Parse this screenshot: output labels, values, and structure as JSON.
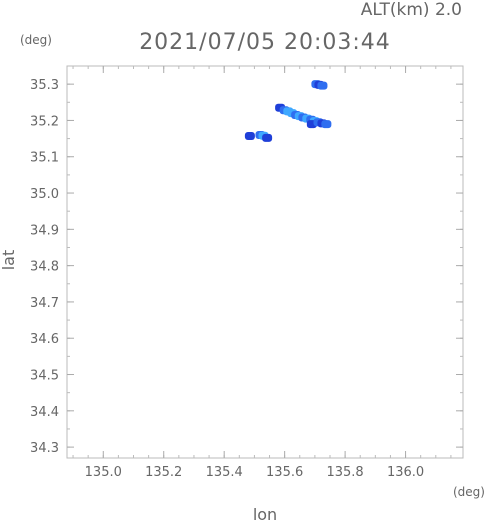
{
  "header": {
    "altitude_label": "ALT(km) 2.0",
    "timestamp": "2021/07/05 20:03:44"
  },
  "chart_data": {
    "type": "scatter",
    "title": "2021/07/05 20:03:44",
    "xlabel": "lon",
    "ylabel": "lat",
    "x_unit": "(deg)",
    "y_unit": "(deg)",
    "xlim": [
      134.88,
      136.19
    ],
    "ylim": [
      34.27,
      35.35
    ],
    "x_ticks": [
      135.0,
      135.2,
      135.4,
      135.6,
      135.8,
      136.0
    ],
    "x_tick_labels": [
      "135.0",
      "135.2",
      "135.4",
      "135.6",
      "135.8",
      "136.0"
    ],
    "y_ticks": [
      35.3,
      35.2,
      35.1,
      35.0,
      34.9,
      34.8,
      34.7,
      34.6,
      34.5,
      34.4,
      34.3
    ],
    "y_tick_labels": [
      "35.3",
      "35.2",
      "35.1",
      "35.0",
      "34.9",
      "34.8",
      "34.7",
      "34.6",
      "34.5",
      "34.4",
      "34.3"
    ],
    "grid": false,
    "colors": {
      "light": "#3fa8ff",
      "mid": "#2f6ef0",
      "dark": "#1f3fd8"
    },
    "points": [
      {
        "lon": 135.705,
        "lat": 35.3,
        "level": "mid"
      },
      {
        "lon": 135.715,
        "lat": 35.298,
        "level": "dark"
      },
      {
        "lon": 135.725,
        "lat": 35.296,
        "level": "mid"
      },
      {
        "lon": 135.585,
        "lat": 35.235,
        "level": "dark"
      },
      {
        "lon": 135.6,
        "lat": 35.228,
        "level": "mid"
      },
      {
        "lon": 135.612,
        "lat": 35.225,
        "level": "light"
      },
      {
        "lon": 135.625,
        "lat": 35.22,
        "level": "light"
      },
      {
        "lon": 135.638,
        "lat": 35.215,
        "level": "mid"
      },
      {
        "lon": 135.65,
        "lat": 35.212,
        "level": "light"
      },
      {
        "lon": 135.662,
        "lat": 35.208,
        "level": "mid"
      },
      {
        "lon": 135.675,
        "lat": 35.205,
        "level": "light"
      },
      {
        "lon": 135.688,
        "lat": 35.202,
        "level": "mid"
      },
      {
        "lon": 135.7,
        "lat": 35.198,
        "level": "light"
      },
      {
        "lon": 135.69,
        "lat": 35.19,
        "level": "dark"
      },
      {
        "lon": 135.712,
        "lat": 35.195,
        "level": "mid"
      },
      {
        "lon": 135.725,
        "lat": 35.192,
        "level": "dark"
      },
      {
        "lon": 135.738,
        "lat": 35.19,
        "level": "mid"
      },
      {
        "lon": 135.52,
        "lat": 35.16,
        "level": "mid"
      },
      {
        "lon": 135.53,
        "lat": 35.158,
        "level": "light"
      },
      {
        "lon": 135.542,
        "lat": 35.152,
        "level": "dark"
      },
      {
        "lon": 135.485,
        "lat": 35.157,
        "level": "dark"
      }
    ]
  }
}
